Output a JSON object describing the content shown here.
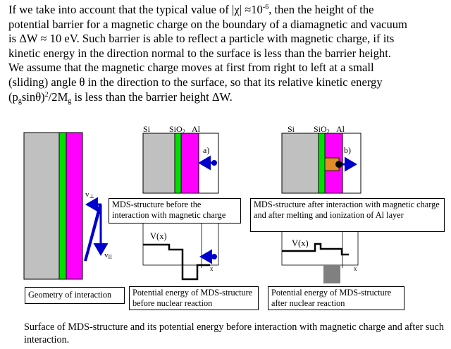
{
  "intro": {
    "line1": "If we take into account that the typical value of |χ| ≈10",
    "line1_exp": "-6",
    "line1_b": ", then the height of the",
    "line2": "potential barrier for a magnetic charge on the boundary of a diamagnetic and vacuum",
    "line3": "is ΔW ≈ 10 eV. Such barrier is able to reflect a particle with magnetic charge, if its",
    "line4": "kinetic energy in the direction normal to the surface is less than the barrier height.",
    "line5": "We assume that the magnetic charge moves at first from right to left at a small",
    "line6": "(sliding) angle θ in the direction to the surface, so that its relative kinetic energy",
    "line7_a": "(p",
    "line7_sub1": "g",
    "line7_b": "sinθ)",
    "line7_sup": "2",
    "line7_c": "/2M",
    "line7_sub2": "g",
    "line7_d": " is less than the barrier height ΔW."
  },
  "panels": {
    "middle": {
      "si": "Si",
      "sio2_main": "SiO",
      "sio2_sub": "2",
      "al": "Al",
      "tag": "a)",
      "box": "MDS-structure before the interaction with magnetic charge",
      "v_label": "V(x)",
      "x_label": "x",
      "caption": "Potential energy of MDS-structure before nuclear reaction"
    },
    "right": {
      "si": "Si",
      "sio2_main": "SiO",
      "sio2_sub": "2",
      "al": "Al",
      "tag": "b)",
      "box": "MDS-structure after interaction with magnetic charge and after melting and ionization  of Al layer",
      "v_label": "V(x)",
      "x_label": "x",
      "caption": "Potential energy of MDS-structure after nuclear reaction"
    },
    "left": {
      "v_perp": "v",
      "v_perp_sub": "⊥",
      "v_par": "v",
      "v_par_sub": "II",
      "caption": "Geometry of interaction"
    }
  },
  "colors": {
    "si": "#c0c0c0",
    "sio2": "#00e000",
    "al": "#ff00ff",
    "arrow": "#0000cc",
    "molten": "#e08c2a",
    "barrier_fill": "#808080"
  },
  "caption": "Surface of MDS-structure and its potential energy before interaction with  magnetic charge and after such interaction."
}
